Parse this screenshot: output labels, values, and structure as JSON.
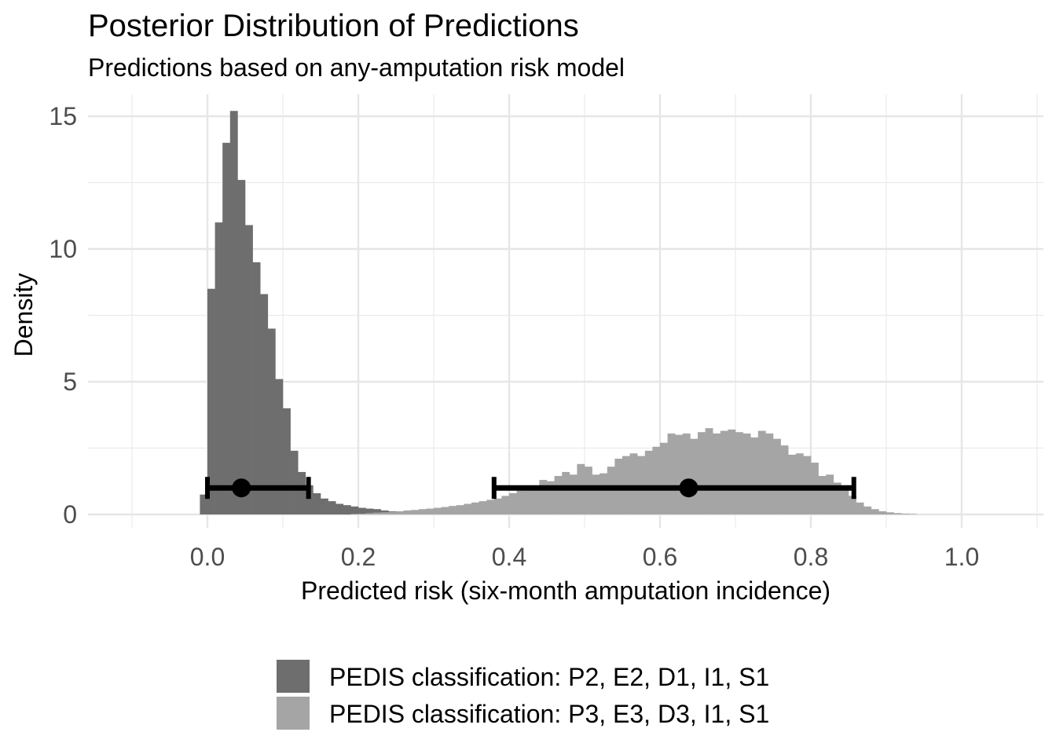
{
  "chart_data": {
    "type": "histogram",
    "title": "Posterior Distribution of Predictions",
    "subtitle": "Predictions based on any-amputation risk model",
    "xlabel": "Predicted risk (six-month amputation incidence)",
    "ylabel": "Density",
    "xlim": [
      -0.1,
      1.1
    ],
    "ylim": [
      0,
      15.5
    ],
    "x_ticks": [
      0.0,
      0.2,
      0.4,
      0.6,
      0.8,
      1.0
    ],
    "x_tick_labels": [
      "0.0",
      "0.2",
      "0.4",
      "0.6",
      "0.8",
      "1.0"
    ],
    "y_ticks": [
      0,
      5,
      10,
      15
    ],
    "y_tick_labels": [
      "0",
      "5",
      "10",
      "15"
    ],
    "grid": true,
    "legend_position": "bottom",
    "bin_width": 0.01,
    "series": [
      {
        "name": "PEDIS classification: P2, E2, D1, I1, S1",
        "color": "#6e6e6e",
        "bin_start": -0.01,
        "densities": [
          0.75,
          8.5,
          11.0,
          14.0,
          15.2,
          12.6,
          10.9,
          9.5,
          8.3,
          7.0,
          5.1,
          4.0,
          2.4,
          1.6,
          1.1,
          0.8,
          0.6,
          0.5,
          0.4,
          0.35,
          0.3,
          0.25,
          0.22,
          0.2,
          0.15,
          0.12,
          0.1,
          0.09,
          0.07,
          0.06,
          0.05,
          0.04,
          0.03,
          0.03,
          0.02,
          0.02,
          0.01,
          0.01
        ]
      },
      {
        "name": "PEDIS classification: P3, E3, D3, I1, S1",
        "color": "#a5a5a5",
        "bin_start": 0.19,
        "densities": [
          0.02,
          0.03,
          0.05,
          0.07,
          0.08,
          0.1,
          0.12,
          0.15,
          0.17,
          0.2,
          0.22,
          0.25,
          0.28,
          0.32,
          0.35,
          0.4,
          0.45,
          0.5,
          0.55,
          0.6,
          0.7,
          0.8,
          0.9,
          1.0,
          1.05,
          1.3,
          1.25,
          1.45,
          1.6,
          1.5,
          1.9,
          1.8,
          1.5,
          1.55,
          1.8,
          2.1,
          2.2,
          2.3,
          2.2,
          2.4,
          2.55,
          2.7,
          3.05,
          3.0,
          3.05,
          2.85,
          3.1,
          3.25,
          3.05,
          3.15,
          3.2,
          3.1,
          3.05,
          2.9,
          3.15,
          3.05,
          2.85,
          2.6,
          2.25,
          2.3,
          2.2,
          1.95,
          1.45,
          1.5,
          1.2,
          0.95,
          0.7,
          0.45,
          0.3,
          0.2,
          0.12,
          0.08,
          0.05,
          0.03,
          0.02
        ]
      }
    ],
    "intervals": [
      {
        "series": "PEDIS classification: P2, E2, D1, I1, S1",
        "point": 0.045,
        "lower": 0.0,
        "upper": 0.134,
        "y": 1.0
      },
      {
        "series": "PEDIS classification: P3, E3, D3, I1, S1",
        "point": 0.638,
        "lower": 0.38,
        "upper": 0.857,
        "y": 1.0
      }
    ]
  }
}
